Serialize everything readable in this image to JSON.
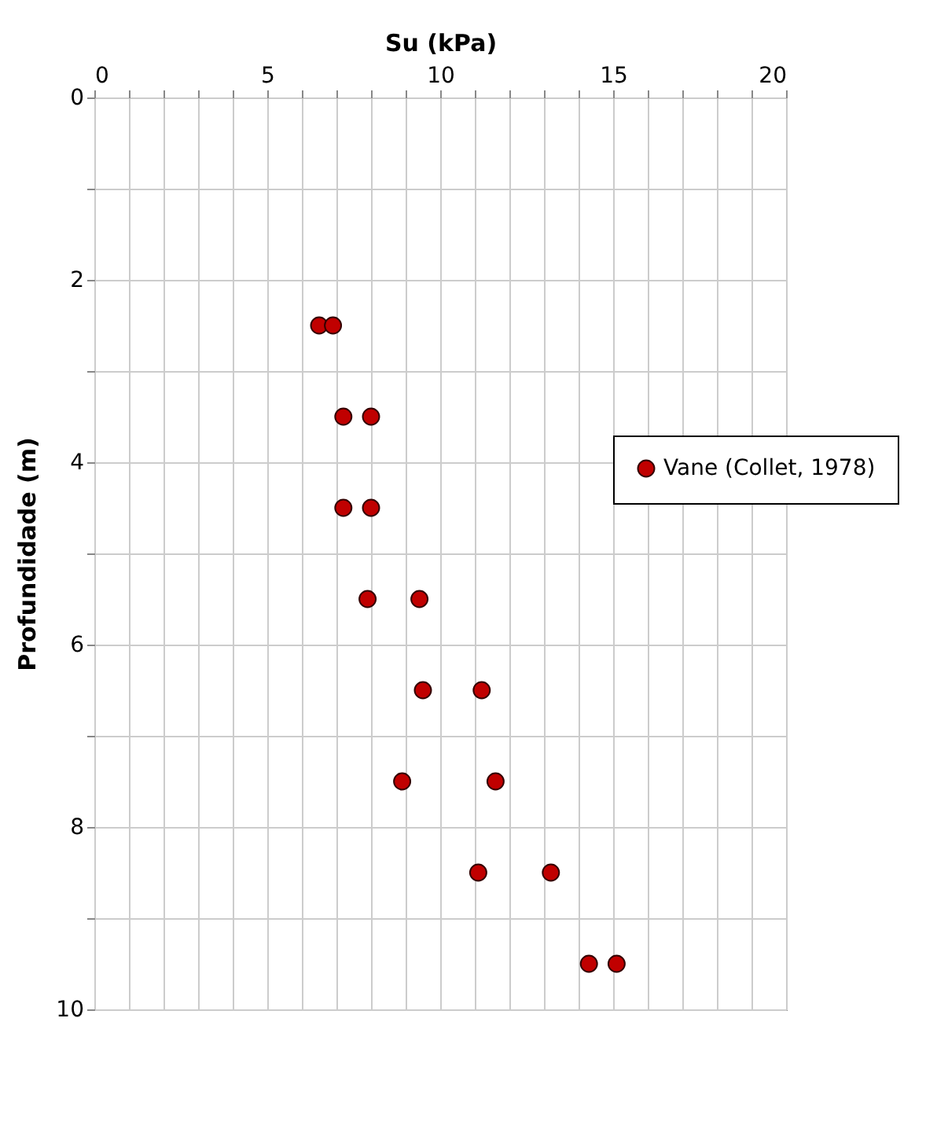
{
  "chart_data": {
    "type": "scatter",
    "xlabel": "Su (kPa)",
    "ylabel": "Profundidade (m)",
    "series": [
      {
        "name": "Vane (Collet, 1978)",
        "color": "#c00000",
        "x": [
          6.5,
          6.9,
          7.2,
          8.0,
          7.2,
          8.0,
          7.9,
          9.4,
          9.5,
          11.2,
          8.9,
          11.6,
          11.1,
          13.2,
          14.3,
          15.1
        ],
        "values": [
          2.5,
          2.5,
          3.5,
          3.5,
          4.5,
          4.5,
          5.5,
          5.5,
          6.5,
          6.5,
          7.5,
          7.5,
          8.5,
          8.5,
          9.5,
          9.5
        ]
      }
    ],
    "xlim": [
      0,
      20
    ],
    "xticks": [
      0,
      {
        "value": 1,
        "label": null
      },
      {
        "value": 2,
        "label": null
      },
      {
        "value": 3,
        "label": null
      },
      {
        "value": 4,
        "label": null
      },
      5,
      {
        "value": 6,
        "label": null
      },
      {
        "value": 7,
        "label": null
      },
      {
        "value": 8,
        "label": null
      },
      {
        "value": 9,
        "label": null
      },
      10,
      {
        "value": 11,
        "label": null
      },
      {
        "value": 12,
        "label": null
      },
      {
        "value": 13,
        "label": null
      },
      {
        "value": 14,
        "label": null
      },
      15,
      {
        "value": 16,
        "label": null
      },
      {
        "value": 17,
        "label": null
      },
      {
        "value": 18,
        "label": null
      },
      {
        "value": 19,
        "label": null
      },
      20
    ],
    "ylim": [
      10,
      0
    ],
    "yticks": [
      0,
      {
        "value": 1,
        "label": null
      },
      2,
      {
        "value": 3,
        "label": null
      },
      4,
      {
        "value": 5,
        "label": null
      },
      6,
      {
        "value": 7,
        "label": null
      },
      8,
      {
        "value": 9,
        "label": null
      },
      10
    ],
    "grid": true,
    "legend": "right",
    "marker": "circle"
  }
}
